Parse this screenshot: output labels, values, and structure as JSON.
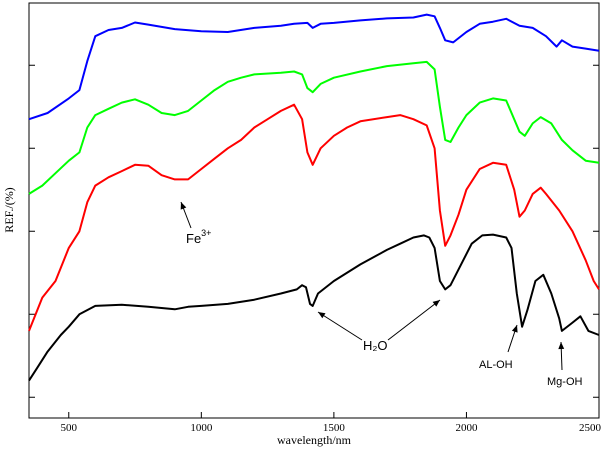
{
  "chart_data": {
    "type": "line",
    "xlabel": "wavelength/nm",
    "ylabel": "REF./(%)",
    "xlim": [
      350,
      2500
    ],
    "ylim": [
      0,
      100
    ],
    "xticks": [
      500,
      1000,
      1500,
      2000,
      2500
    ],
    "yticks": [
      5,
      25,
      45,
      65,
      85
    ],
    "ytick_labels_shown": false,
    "grid": false,
    "legend": "none",
    "series": [
      {
        "color": "#0000ff",
        "points": [
          [
            350,
            72
          ],
          [
            420,
            73.5
          ],
          [
            500,
            77
          ],
          [
            540,
            79
          ],
          [
            570,
            86
          ],
          [
            600,
            92
          ],
          [
            650,
            93.5
          ],
          [
            700,
            94
          ],
          [
            750,
            95.3
          ],
          [
            800,
            94.8
          ],
          [
            900,
            93.7
          ],
          [
            1000,
            93.2
          ],
          [
            1100,
            93
          ],
          [
            1200,
            94
          ],
          [
            1300,
            94.5
          ],
          [
            1350,
            95
          ],
          [
            1400,
            95.2
          ],
          [
            1420,
            94
          ],
          [
            1450,
            95
          ],
          [
            1500,
            95.2
          ],
          [
            1600,
            95.8
          ],
          [
            1700,
            96.3
          ],
          [
            1800,
            96.5
          ],
          [
            1850,
            97.2
          ],
          [
            1880,
            96.8
          ],
          [
            1900,
            94
          ],
          [
            1920,
            91
          ],
          [
            1950,
            90.5
          ],
          [
            2000,
            93
          ],
          [
            2050,
            95
          ],
          [
            2100,
            95.5
          ],
          [
            2150,
            96.2
          ],
          [
            2200,
            94.5
          ],
          [
            2250,
            94
          ],
          [
            2300,
            92
          ],
          [
            2340,
            89.5
          ],
          [
            2360,
            91
          ],
          [
            2400,
            89.5
          ],
          [
            2450,
            89
          ],
          [
            2500,
            88.5
          ]
        ]
      },
      {
        "color": "#00ff00",
        "points": [
          [
            350,
            54
          ],
          [
            400,
            56
          ],
          [
            450,
            59
          ],
          [
            500,
            62
          ],
          [
            540,
            64
          ],
          [
            570,
            70
          ],
          [
            600,
            73
          ],
          [
            650,
            74.5
          ],
          [
            700,
            76
          ],
          [
            750,
            76.8
          ],
          [
            800,
            75.5
          ],
          [
            850,
            73.5
          ],
          [
            900,
            73
          ],
          [
            950,
            74
          ],
          [
            1000,
            76.5
          ],
          [
            1050,
            79
          ],
          [
            1100,
            81
          ],
          [
            1150,
            82
          ],
          [
            1200,
            82.8
          ],
          [
            1300,
            83.2
          ],
          [
            1350,
            83.5
          ],
          [
            1380,
            82.8
          ],
          [
            1400,
            79.5
          ],
          [
            1420,
            78.5
          ],
          [
            1450,
            80.5
          ],
          [
            1500,
            82
          ],
          [
            1600,
            83.5
          ],
          [
            1700,
            84.8
          ],
          [
            1800,
            85.5
          ],
          [
            1850,
            85.8
          ],
          [
            1880,
            84
          ],
          [
            1900,
            75
          ],
          [
            1920,
            67
          ],
          [
            1940,
            66.5
          ],
          [
            1970,
            70
          ],
          [
            2000,
            73
          ],
          [
            2050,
            76
          ],
          [
            2100,
            77
          ],
          [
            2150,
            76.5
          ],
          [
            2200,
            69
          ],
          [
            2220,
            68
          ],
          [
            2250,
            71
          ],
          [
            2280,
            72.5
          ],
          [
            2320,
            71
          ],
          [
            2360,
            67
          ],
          [
            2400,
            64.5
          ],
          [
            2450,
            62
          ],
          [
            2500,
            61.5
          ]
        ]
      },
      {
        "color": "#ff0000",
        "points": [
          [
            350,
            21
          ],
          [
            400,
            29
          ],
          [
            450,
            33
          ],
          [
            500,
            41
          ],
          [
            540,
            45
          ],
          [
            570,
            52
          ],
          [
            600,
            56
          ],
          [
            650,
            58
          ],
          [
            700,
            59.5
          ],
          [
            750,
            61
          ],
          [
            800,
            60.8
          ],
          [
            850,
            58.5
          ],
          [
            900,
            57.5
          ],
          [
            950,
            57.5
          ],
          [
            1000,
            60
          ],
          [
            1050,
            62.5
          ],
          [
            1100,
            65
          ],
          [
            1150,
            67
          ],
          [
            1200,
            70
          ],
          [
            1250,
            72
          ],
          [
            1300,
            74
          ],
          [
            1350,
            75.5
          ],
          [
            1380,
            72
          ],
          [
            1400,
            64
          ],
          [
            1420,
            61
          ],
          [
            1450,
            65
          ],
          [
            1500,
            68
          ],
          [
            1550,
            70
          ],
          [
            1600,
            71.5
          ],
          [
            1700,
            72.5
          ],
          [
            1750,
            73
          ],
          [
            1800,
            72
          ],
          [
            1850,
            70.5
          ],
          [
            1880,
            65
          ],
          [
            1900,
            50
          ],
          [
            1920,
            41.5
          ],
          [
            1940,
            44
          ],
          [
            1970,
            49
          ],
          [
            2000,
            55
          ],
          [
            2050,
            60
          ],
          [
            2100,
            61.5
          ],
          [
            2150,
            61
          ],
          [
            2180,
            55
          ],
          [
            2200,
            48.5
          ],
          [
            2220,
            50
          ],
          [
            2250,
            54
          ],
          [
            2280,
            55.5
          ],
          [
            2300,
            54
          ],
          [
            2350,
            50
          ],
          [
            2400,
            45
          ],
          [
            2450,
            38
          ],
          [
            2480,
            33
          ],
          [
            2500,
            31
          ]
        ]
      },
      {
        "color": "#000000",
        "points": [
          [
            350,
            9
          ],
          [
            380,
            12
          ],
          [
            420,
            16
          ],
          [
            470,
            20
          ],
          [
            500,
            22
          ],
          [
            540,
            25
          ],
          [
            600,
            27
          ],
          [
            700,
            27.3
          ],
          [
            800,
            26.8
          ],
          [
            900,
            26.2
          ],
          [
            950,
            26.8
          ],
          [
            1000,
            27
          ],
          [
            1100,
            27.5
          ],
          [
            1200,
            28.5
          ],
          [
            1300,
            30
          ],
          [
            1360,
            31
          ],
          [
            1380,
            32
          ],
          [
            1395,
            31.5
          ],
          [
            1410,
            27.5
          ],
          [
            1420,
            27
          ],
          [
            1440,
            30
          ],
          [
            1500,
            33
          ],
          [
            1600,
            37
          ],
          [
            1700,
            40.5
          ],
          [
            1750,
            42
          ],
          [
            1800,
            43.5
          ],
          [
            1840,
            44
          ],
          [
            1860,
            43.5
          ],
          [
            1880,
            41
          ],
          [
            1900,
            33
          ],
          [
            1920,
            31
          ],
          [
            1940,
            32
          ],
          [
            1980,
            37
          ],
          [
            2020,
            42
          ],
          [
            2060,
            44
          ],
          [
            2100,
            44.2
          ],
          [
            2150,
            43.5
          ],
          [
            2170,
            41
          ],
          [
            2190,
            30
          ],
          [
            2210,
            22
          ],
          [
            2230,
            26
          ],
          [
            2260,
            33
          ],
          [
            2290,
            34.5
          ],
          [
            2320,
            30
          ],
          [
            2350,
            24
          ],
          [
            2360,
            21
          ],
          [
            2400,
            23
          ],
          [
            2430,
            24.5
          ],
          [
            2460,
            21
          ],
          [
            2500,
            20
          ]
        ]
      }
    ],
    "annotations": [
      {
        "label": "Fe",
        "superscript": "3+"
      },
      {
        "label": "H₂O"
      },
      {
        "label": "AL-OH"
      },
      {
        "label": "Mg-OH"
      }
    ]
  }
}
